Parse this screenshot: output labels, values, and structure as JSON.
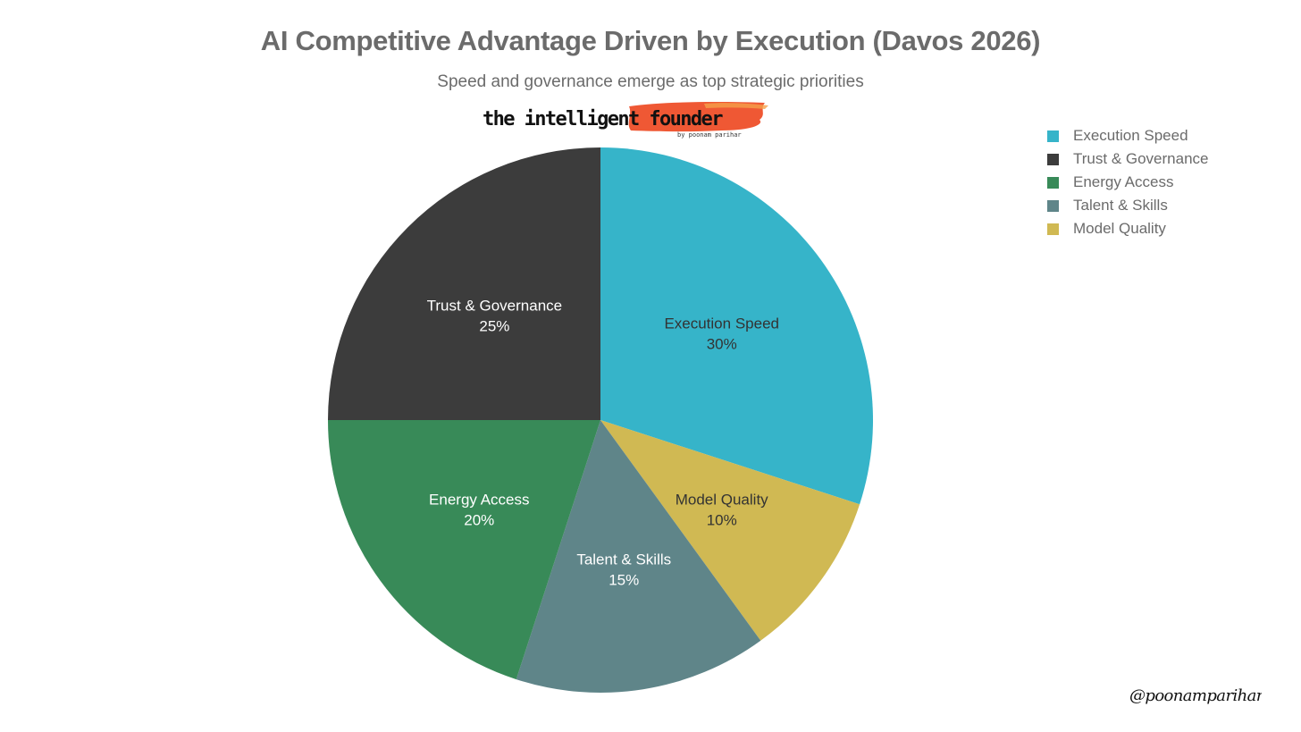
{
  "chart_data": {
    "type": "pie",
    "title": "AI Competitive Advantage Driven by Execution (Davos 2026)",
    "subtitle": "Speed and governance emerge as top strategic priorities",
    "unit": "%",
    "legend_position": "top-right",
    "slices": [
      {
        "label": "Execution Speed",
        "value": 30,
        "color": "#36b4c9",
        "label_color": "#333333"
      },
      {
        "label": "Model Quality",
        "value": 10,
        "color": "#d0b953",
        "label_color": "#333333"
      },
      {
        "label": "Talent & Skills",
        "value": 15,
        "color": "#5f8589",
        "label_color": "#ffffff"
      },
      {
        "label": "Energy Access",
        "value": 20,
        "color": "#388a58",
        "label_color": "#ffffff"
      },
      {
        "label": "Trust & Governance",
        "value": 25,
        "color": "#3c3c3c",
        "label_color": "#ffffff"
      }
    ],
    "legend_order": [
      "Execution Speed",
      "Trust & Governance",
      "Energy Access",
      "Talent & Skills",
      "Model Quality"
    ]
  },
  "branding": {
    "logo_text": "the intelligent founder",
    "logo_byline": "by poonam parihar",
    "signature_text": "@poonamparihar"
  }
}
